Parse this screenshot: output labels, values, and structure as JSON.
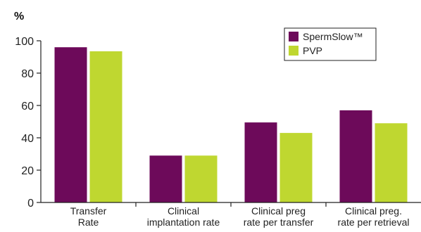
{
  "chart_data": {
    "type": "bar",
    "ylabel": "%",
    "ylim": [
      0,
      100
    ],
    "yticks": [
      0,
      20,
      40,
      60,
      80,
      100
    ],
    "grid": false,
    "legend_position": "top-right",
    "categories": [
      [
        "Transfer",
        "Rate"
      ],
      [
        "Clinical",
        "implantation rate"
      ],
      [
        "Clinical preg",
        "rate per transfer"
      ],
      [
        "Clinical preg.",
        "rate per retrieval"
      ]
    ],
    "series": [
      {
        "name": "SpermSlow™",
        "color": "#6d0a5a",
        "values": [
          96,
          29,
          49.5,
          57
        ]
      },
      {
        "name": "PVP",
        "color": "#bfd730",
        "values": [
          93.5,
          29,
          43,
          49
        ]
      }
    ]
  }
}
